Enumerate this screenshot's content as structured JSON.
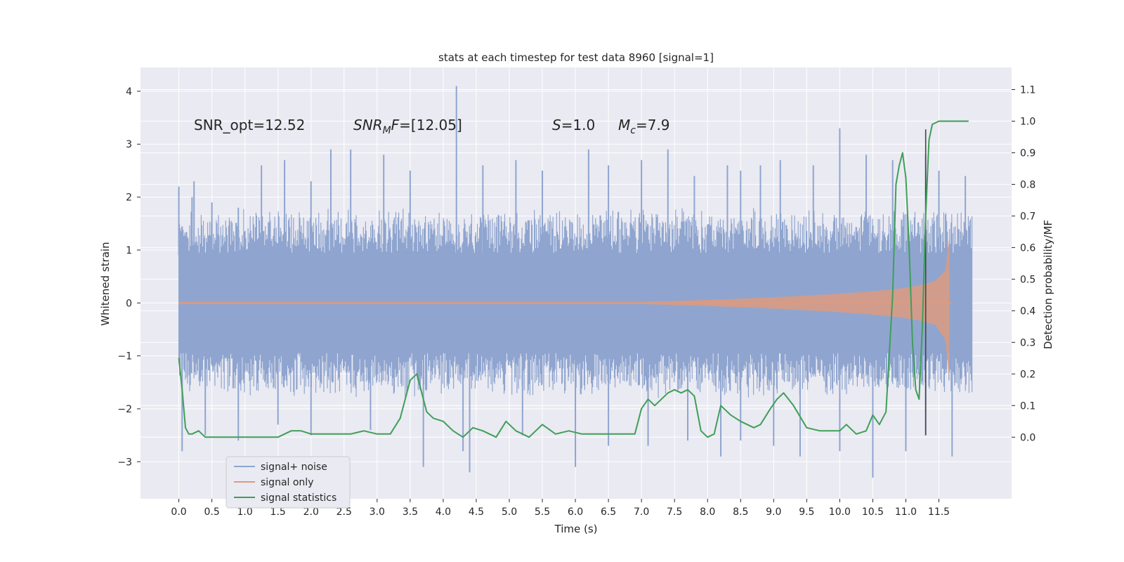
{
  "chart_data": {
    "type": "line",
    "title": "stats at each timestep for test data 8960 [signal=1]",
    "xlabel": "Time (s)",
    "ylabel_left": "Whitened strain",
    "ylabel_right": "Detection probability/MF",
    "xlim": [
      -0.58,
      12.6
    ],
    "ylim_left": [
      -3.7,
      4.45
    ],
    "ylim_right": [
      -0.195,
      1.17
    ],
    "x_ticks": [
      0.0,
      0.5,
      1.0,
      1.5,
      2.0,
      2.5,
      3.0,
      3.5,
      4.0,
      4.5,
      5.0,
      5.5,
      6.0,
      6.5,
      7.0,
      7.5,
      8.0,
      8.5,
      9.0,
      9.5,
      10.0,
      10.5,
      11.0,
      11.5
    ],
    "x_tick_labels": [
      "0.0",
      "0.5",
      "1.0",
      "1.5",
      "2.0",
      "2.5",
      "3.0",
      "3.5",
      "4.0",
      "4.5",
      "5.0",
      "5.5",
      "6.0",
      "6.5",
      "7.0",
      "7.5",
      "8.0",
      "8.5",
      "9.0",
      "9.5",
      "10.0",
      "10.5",
      "11.0",
      "11.5"
    ],
    "y_left_ticks": [
      -3,
      -2,
      -1,
      0,
      1,
      2,
      3,
      4
    ],
    "y_left_tick_labels": [
      "−3",
      "−2",
      "−1",
      "0",
      "1",
      "2",
      "3",
      "4"
    ],
    "y_right_ticks": [
      0.0,
      0.1,
      0.2,
      0.3,
      0.4,
      0.5,
      0.6,
      0.7,
      0.8,
      0.9,
      1.0,
      1.1
    ],
    "y_right_tick_labels": [
      "0.0",
      "0.1",
      "0.2",
      "0.3",
      "0.4",
      "0.5",
      "0.6",
      "0.7",
      "0.8",
      "0.9",
      "1.0",
      "1.1"
    ],
    "annotations": {
      "snr_opt": "SNR_opt=12.52",
      "snr_mf_sym": "SNR",
      "snr_mf_sub": "M",
      "snr_mf_sym2": "F",
      "snr_mf_val": "=[12.05]",
      "s_sym": "S",
      "s_val": "=1.0",
      "mc_sym": "M",
      "mc_sub": "c",
      "mc_val": "=7.9"
    },
    "legend": {
      "position": "lower-left",
      "entries": [
        "signal+ noise",
        "signal only",
        "signal statistics"
      ]
    },
    "series": [
      {
        "name": "signal+ noise",
        "axis": "left",
        "color": "#8fa5cf",
        "t_start": 0.0,
        "t_end": 12.0,
        "band_upper": 1.55,
        "band_lower": -1.55,
        "spikes_up": [
          [
            0.0,
            2.2
          ],
          [
            0.2,
            2.0
          ],
          [
            0.23,
            2.3
          ],
          [
            0.5,
            1.9
          ],
          [
            0.9,
            1.8
          ],
          [
            1.25,
            2.6
          ],
          [
            1.6,
            2.7
          ],
          [
            2.0,
            2.3
          ],
          [
            2.3,
            2.9
          ],
          [
            2.6,
            2.9
          ],
          [
            3.1,
            2.8
          ],
          [
            3.5,
            2.5
          ],
          [
            4.2,
            4.1
          ],
          [
            4.6,
            2.6
          ],
          [
            5.1,
            2.7
          ],
          [
            5.5,
            2.5
          ],
          [
            6.2,
            2.9
          ],
          [
            6.5,
            2.6
          ],
          [
            7.0,
            2.7
          ],
          [
            7.4,
            2.9
          ],
          [
            7.8,
            2.4
          ],
          [
            8.3,
            2.6
          ],
          [
            8.5,
            2.5
          ],
          [
            8.8,
            2.6
          ],
          [
            9.1,
            2.7
          ],
          [
            9.6,
            2.6
          ],
          [
            10.0,
            3.3
          ],
          [
            10.4,
            2.8
          ],
          [
            10.8,
            2.7
          ],
          [
            11.3,
            2.8
          ],
          [
            11.5,
            2.5
          ],
          [
            11.9,
            2.4
          ]
        ],
        "spikes_down": [
          [
            0.05,
            -2.8
          ],
          [
            0.4,
            -2.5
          ],
          [
            0.9,
            -2.6
          ],
          [
            1.5,
            -2.3
          ],
          [
            2.0,
            -2.5
          ],
          [
            2.9,
            -2.4
          ],
          [
            3.7,
            -3.1
          ],
          [
            4.3,
            -2.8
          ],
          [
            4.4,
            -3.2
          ],
          [
            5.2,
            -2.5
          ],
          [
            6.0,
            -3.1
          ],
          [
            6.5,
            -2.7
          ],
          [
            7.1,
            -2.7
          ],
          [
            7.7,
            -2.6
          ],
          [
            8.2,
            -2.9
          ],
          [
            8.5,
            -2.6
          ],
          [
            9.0,
            -2.7
          ],
          [
            9.4,
            -2.9
          ],
          [
            10.0,
            -2.8
          ],
          [
            10.5,
            -3.3
          ],
          [
            11.0,
            -2.8
          ],
          [
            11.3,
            -2.5
          ],
          [
            11.7,
            -2.9
          ]
        ]
      },
      {
        "name": "signal only",
        "axis": "left",
        "color": "#dd9a80",
        "envelope": [
          [
            0.0,
            0.02
          ],
          [
            7.0,
            0.02
          ],
          [
            7.8,
            0.05
          ],
          [
            8.5,
            0.08
          ],
          [
            9.2,
            0.12
          ],
          [
            9.8,
            0.16
          ],
          [
            10.4,
            0.21
          ],
          [
            10.9,
            0.27
          ],
          [
            11.2,
            0.33
          ],
          [
            11.45,
            0.42
          ],
          [
            11.6,
            0.62
          ],
          [
            11.66,
            1.3
          ]
        ],
        "envelope_lower": [
          [
            0.0,
            -0.02
          ],
          [
            7.0,
            -0.02
          ],
          [
            7.8,
            -0.05
          ],
          [
            8.5,
            -0.08
          ],
          [
            9.2,
            -0.12
          ],
          [
            9.8,
            -0.16
          ],
          [
            10.4,
            -0.21
          ],
          [
            10.9,
            -0.27
          ],
          [
            11.2,
            -0.33
          ],
          [
            11.45,
            -0.42
          ],
          [
            11.6,
            -0.7
          ],
          [
            11.66,
            -1.5
          ]
        ],
        "end_time": 11.7
      },
      {
        "name": "signal statistics",
        "axis": "right",
        "color": "#3f9f57",
        "x": [
          0.0,
          0.05,
          0.1,
          0.15,
          0.2,
          0.3,
          0.4,
          0.5,
          0.7,
          1.0,
          1.2,
          1.5,
          1.7,
          1.85,
          2.0,
          2.2,
          2.4,
          2.6,
          2.8,
          3.0,
          3.2,
          3.35,
          3.5,
          3.6,
          3.65,
          3.75,
          3.85,
          4.0,
          4.15,
          4.3,
          4.45,
          4.6,
          4.8,
          4.95,
          5.1,
          5.3,
          5.5,
          5.7,
          5.9,
          6.1,
          6.3,
          6.5,
          6.7,
          6.9,
          7.0,
          7.1,
          7.2,
          7.3,
          7.4,
          7.5,
          7.6,
          7.7,
          7.8,
          7.9,
          8.0,
          8.1,
          8.2,
          8.35,
          8.5,
          8.7,
          8.8,
          8.95,
          9.05,
          9.15,
          9.3,
          9.5,
          9.7,
          9.9,
          10.0,
          10.1,
          10.25,
          10.4,
          10.5,
          10.6,
          10.7,
          10.8,
          10.85,
          10.9,
          10.95,
          11.0,
          11.05,
          11.1,
          11.15,
          11.2,
          11.25,
          11.3,
          11.35,
          11.4,
          11.5,
          11.7,
          11.9,
          11.95
        ],
        "y": [
          0.25,
          0.15,
          0.03,
          0.01,
          0.01,
          0.02,
          0.0,
          0.0,
          0.0,
          0.0,
          0.0,
          0.0,
          0.02,
          0.02,
          0.01,
          0.01,
          0.01,
          0.01,
          0.02,
          0.01,
          0.01,
          0.06,
          0.18,
          0.2,
          0.16,
          0.08,
          0.06,
          0.05,
          0.02,
          0.0,
          0.03,
          0.02,
          0.0,
          0.05,
          0.02,
          0.0,
          0.04,
          0.01,
          0.02,
          0.01,
          0.01,
          0.01,
          0.01,
          0.01,
          0.09,
          0.12,
          0.1,
          0.12,
          0.14,
          0.15,
          0.14,
          0.15,
          0.13,
          0.02,
          0.0,
          0.01,
          0.1,
          0.07,
          0.05,
          0.03,
          0.04,
          0.09,
          0.12,
          0.14,
          0.1,
          0.03,
          0.02,
          0.02,
          0.02,
          0.04,
          0.01,
          0.02,
          0.07,
          0.04,
          0.08,
          0.45,
          0.8,
          0.86,
          0.9,
          0.82,
          0.6,
          0.3,
          0.15,
          0.12,
          0.35,
          0.7,
          0.94,
          0.99,
          1.0,
          1.0,
          1.0,
          1.0
        ]
      }
    ],
    "vertical_marker": {
      "x": 11.3,
      "y_top": 3.28,
      "y_bottom": -2.5,
      "color": "#444444"
    }
  }
}
